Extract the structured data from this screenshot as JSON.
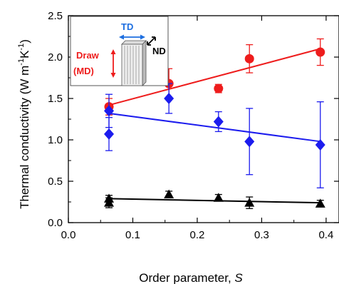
{
  "chart_data": {
    "type": "scatter",
    "title": "",
    "xlabel": "Order parameter, S",
    "xlabel_parts": [
      "Order parameter, ",
      "S"
    ],
    "ylabel": "Thermal conductivity (W m-1K-1)",
    "ylabel_parts": [
      "Thermal conductivity (W m",
      "-1",
      "K",
      "-1",
      ")"
    ],
    "xlim": [
      0.0,
      0.42
    ],
    "ylim": [
      0.0,
      2.5
    ],
    "xticks": [
      0.0,
      0.1,
      0.2,
      0.3,
      0.4
    ],
    "xtick_labels": [
      "0.0",
      "0.1",
      "0.2",
      "0.3",
      "0.4"
    ],
    "yticks": [
      0.0,
      0.5,
      1.0,
      1.5,
      2.0,
      2.5
    ],
    "ytick_labels": [
      "0.0",
      "0.5",
      "1.0",
      "1.5",
      "2.0",
      "2.5"
    ],
    "grid": false,
    "series": [
      {
        "marker": "circle",
        "color": "#ee1c1c",
        "points": [
          {
            "x": 0.063,
            "y": 1.4,
            "err": 0.1
          },
          {
            "x": 0.156,
            "y": 1.68,
            "err": 0.18
          },
          {
            "x": 0.233,
            "y": 1.62,
            "err": 0.05
          },
          {
            "x": 0.281,
            "y": 1.98,
            "err": 0.17
          },
          {
            "x": 0.391,
            "y": 2.06,
            "err": 0.16
          }
        ],
        "fit": {
          "x": [
            0.063,
            0.391
          ],
          "y": [
            1.42,
            2.1
          ]
        }
      },
      {
        "marker": "diamond",
        "color": "#1c1cee",
        "points": [
          {
            "x": 0.063,
            "y": 1.35,
            "err": 0.2
          },
          {
            "x": 0.063,
            "y": 1.07,
            "err": 0.2
          },
          {
            "x": 0.156,
            "y": 1.5,
            "err": 0.18
          },
          {
            "x": 0.233,
            "y": 1.22,
            "err": 0.12
          },
          {
            "x": 0.281,
            "y": 0.98,
            "err": 0.4
          },
          {
            "x": 0.391,
            "y": 0.94,
            "err": 0.52
          }
        ],
        "fit": {
          "x": [
            0.063,
            0.391
          ],
          "y": [
            1.32,
            0.98
          ]
        }
      },
      {
        "marker": "triangle",
        "color": "#000000",
        "points": [
          {
            "x": 0.063,
            "y": 0.29,
            "err": 0.04
          },
          {
            "x": 0.063,
            "y": 0.24,
            "err": 0.06
          },
          {
            "x": 0.156,
            "y": 0.34,
            "err": 0.04
          },
          {
            "x": 0.233,
            "y": 0.3,
            "err": 0.04
          },
          {
            "x": 0.281,
            "y": 0.24,
            "err": 0.07
          },
          {
            "x": 0.391,
            "y": 0.23,
            "err": 0.04
          }
        ],
        "fit": {
          "x": [
            0.063,
            0.391
          ],
          "y": [
            0.29,
            0.24
          ]
        }
      }
    ],
    "inset": {
      "td_label": "TD",
      "nd_label": "ND",
      "draw_label": "Draw",
      "md_label": "(MD)",
      "td_color": "#1e6fe0",
      "draw_color": "#ee1c1c"
    }
  }
}
